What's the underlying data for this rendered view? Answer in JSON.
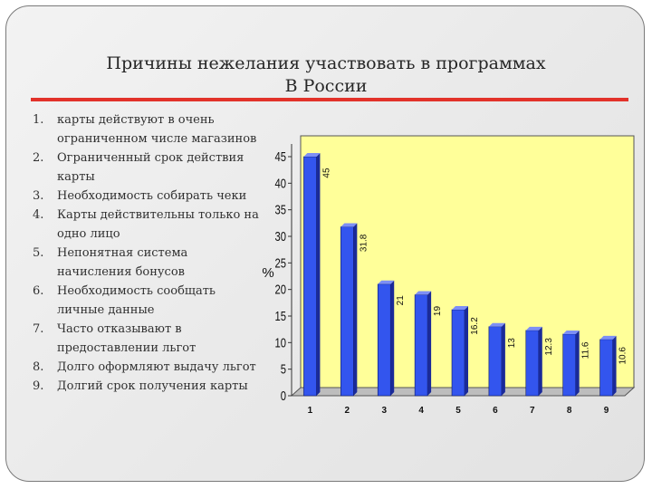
{
  "slide": {
    "title_line1": "Причины нежелания участвовать в программах",
    "title_line2": "В России"
  },
  "reasons": [
    {
      "num": "1.",
      "text": " карты действуют в очень ограниченном числе магазинов"
    },
    {
      "num": "2.",
      "text": " Ограниченный срок действия карты"
    },
    {
      "num": "3.",
      "text": " Необходимость собирать чеки"
    },
    {
      "num": "4.",
      "text": " Карты действительны только на одно лицо"
    },
    {
      "num": "5.",
      "text": " Непонятная система начисления бонусов"
    },
    {
      "num": "6.",
      "text": "Необходимость сообщать личные данные"
    },
    {
      "num": "7.",
      "text": " Часто отказывают в предоставлении льгот"
    },
    {
      "num": "8.",
      "text": " Долго оформляют выдачу льгот"
    },
    {
      "num": "9.",
      "text": "Долгий срок получения карты"
    }
  ],
  "colors": {
    "plot_area": "#ffff99",
    "bar_face": "#3355ee",
    "bar_side": "#1a2a99",
    "bar_top": "#7d8ff5",
    "accent_rule": "#e2322a"
  },
  "chart_data": {
    "type": "bar",
    "categories": [
      "1",
      "2",
      "3",
      "4",
      "5",
      "6",
      "7",
      "8",
      "9"
    ],
    "values": [
      45,
      31.8,
      21,
      19,
      16.2,
      13,
      12.3,
      11.6,
      10.6
    ],
    "value_labels": [
      "45",
      "31.8",
      "21",
      "19",
      "16.2",
      "13",
      "12.3",
      "11.6",
      "10.6"
    ],
    "ylabel": "%",
    "yticks": [
      "0",
      "5",
      "10",
      "15",
      "20",
      "25",
      "30",
      "35",
      "40",
      "45"
    ],
    "ylim": [
      0,
      45
    ],
    "grid": false,
    "three_d": true
  }
}
